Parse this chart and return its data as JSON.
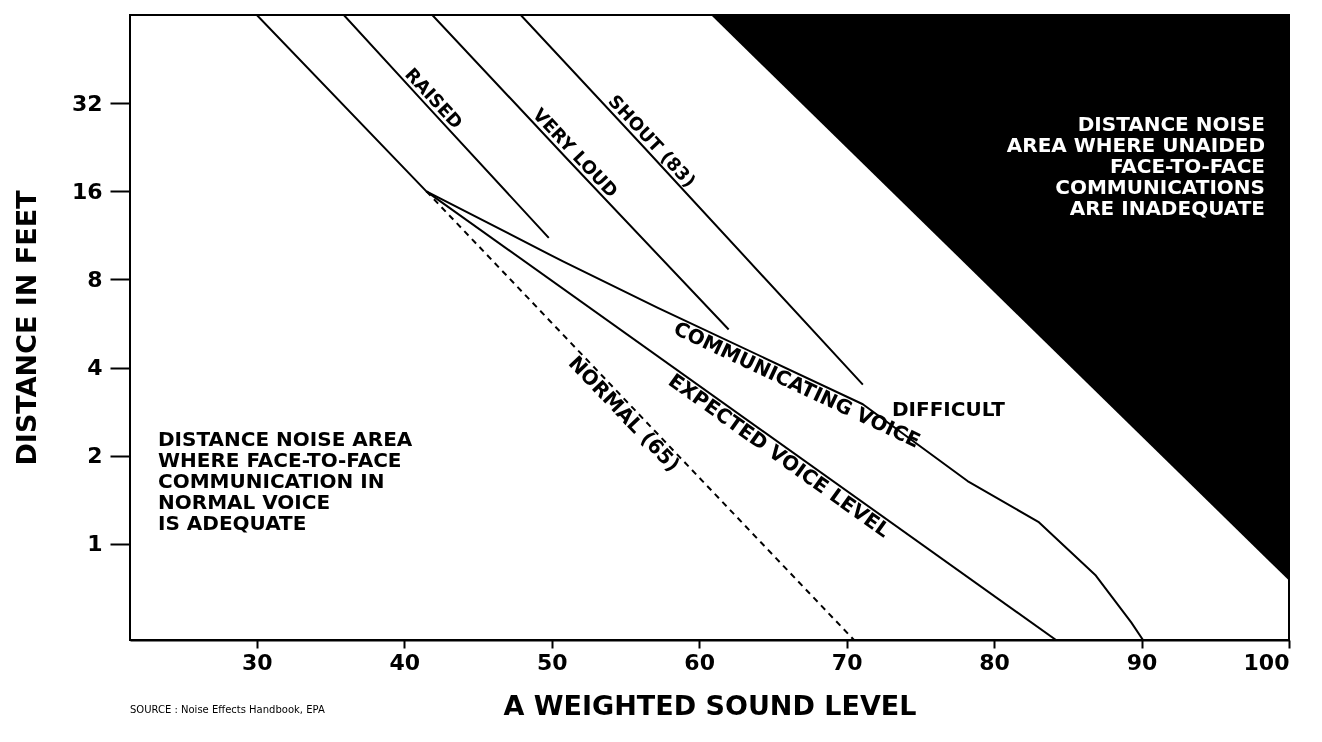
{
  "chart_data": {
    "type": "line",
    "xlabel": "A WEIGHTED SOUND LEVEL",
    "ylabel": "DISTANCE IN FEET",
    "xlim": [
      21.4,
      100
    ],
    "xticks": [
      30,
      40,
      50,
      60,
      70,
      80,
      90,
      100
    ],
    "ylim": [
      0.47,
      64
    ],
    "yticks": [
      1,
      2,
      4,
      8,
      16,
      32
    ],
    "log": "y",
    "series": [
      {
        "name": "RAISED",
        "color": "#000000",
        "x": [
          35.9,
          41.5,
          49.8
        ],
        "values": [
          64,
          31.5,
          11.1
        ]
      },
      {
        "name": "VERY LOUD",
        "color": "#000000",
        "x": [
          41.9,
          51.1,
          62
        ],
        "values": [
          64,
          20.5,
          5.4
        ]
      },
      {
        "name": "SHOUT (83)",
        "color": "#000000",
        "x": [
          47.9,
          56.3,
          71.1
        ],
        "values": [
          64,
          22.5,
          3.5
        ]
      },
      {
        "name": "COMMUNICATING VOICE",
        "color": "#000000",
        "x": [
          30,
          41.5,
          50.8,
          57.2,
          71.1,
          78.2,
          83,
          86.9,
          89.3,
          90.1
        ],
        "values": [
          64,
          16,
          9.2,
          6.4,
          3.0,
          1.64,
          1.19,
          0.78,
          0.54,
          0.47
        ]
      },
      {
        "name": "EXPECTED VOICE LEVEL",
        "color": "#000000",
        "x": [
          41.5,
          84.2
        ],
        "values": [
          16,
          0.47
        ]
      },
      {
        "name": "NORMAL (65)",
        "color": "#000000",
        "line_style": "dashed",
        "x": [
          41.5,
          70.5
        ],
        "values": [
          16,
          0.47
        ]
      },
      {
        "type": "area",
        "color": "#000000",
        "x": [
          60.8,
          100
        ],
        "values": [
          64,
          0.75
        ]
      }
    ],
    "annotations": [
      "DISTANCE NOISE AREA\nWHERE FACE-TO-FACE\nCOMMUNICATION IN\nNORMAL VOICE\nIS ADEQUATE",
      "DIFFICULT",
      "DISTANCE NOISE\nAREA WHERE UNAIDED\nFACE-TO-FACE\nCOMMUNICATIONS\nARE INADEQUATE",
      "SOURCE : Noise Effects Handbook, EPA"
    ]
  }
}
